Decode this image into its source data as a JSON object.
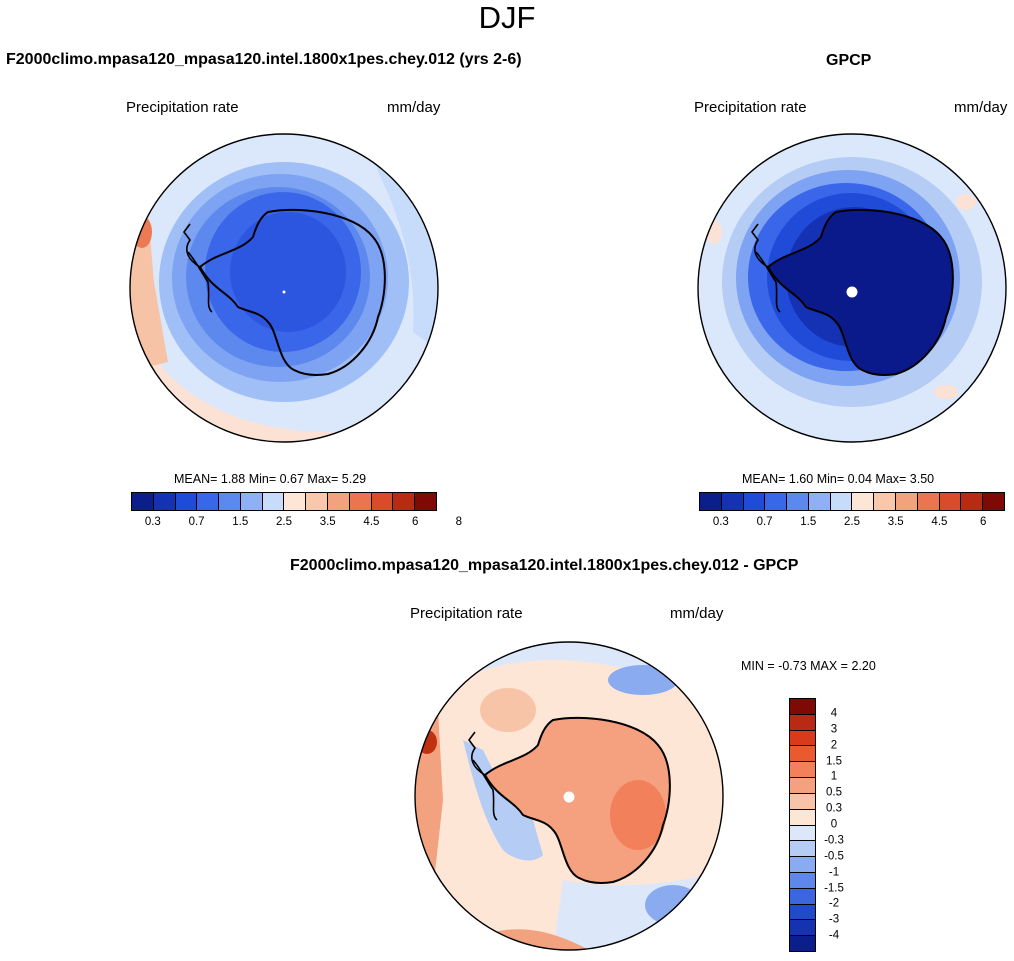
{
  "figure": {
    "season": "DJF",
    "title_model": "F2000climo.mpasa120_mpasa120.intel.1800x1pes.chey.012 (yrs 2-6)",
    "title_obs": "GPCP",
    "title_diff": "F2000climo.mpasa120_mpasa120.intel.1800x1pes.chey.012 - GPCP"
  },
  "panels": [
    {
      "variable": "Precipitation rate",
      "units": "mm/day",
      "stats": "MEAN=   1.88  Min=   0.67  Max=   5.29",
      "projection": "south polar stereographic",
      "dominant_color": "#3366ee"
    },
    {
      "variable": "Precipitation rate",
      "units": "mm/day",
      "stats": "MEAN=   1.60  Min=   0.04  Max=   3.50",
      "projection": "south polar stereographic",
      "dominant_color": "#0a1f9a"
    },
    {
      "variable": "Precipitation rate",
      "units": "mm/day",
      "stats": "MIN =  -0.73 MAX =   2.20",
      "projection": "south polar stereographic",
      "dominant_color": "#f0a080"
    }
  ],
  "colorbar_main": {
    "orientation": "horizontal",
    "colors": [
      "#0b1e8c",
      "#1532b5",
      "#1f4bd8",
      "#3a66ea",
      "#5d88f0",
      "#8fb0f5",
      "#c7dbfa",
      "#fde6d6",
      "#f8c8ac",
      "#f2a27e",
      "#ea7550",
      "#da4b2a",
      "#b82a14",
      "#7f0a05"
    ],
    "tick_labels": [
      "0.3",
      "0.7",
      "1.5",
      "2.5",
      "3.5",
      "4.5",
      "6",
      "8"
    ]
  },
  "colorbar_diff": {
    "orientation": "vertical",
    "colors": [
      "#7f0a05",
      "#b82a14",
      "#da3a1c",
      "#ea5a30",
      "#f2805a",
      "#f5a07e",
      "#f8c4a8",
      "#fde6d6",
      "#dce8fa",
      "#b5cdf5",
      "#8aabf0",
      "#5d88ea",
      "#3a66de",
      "#1f4bc8",
      "#1532b0",
      "#0b1e8c"
    ],
    "tick_labels": [
      "4",
      "3",
      "2",
      "1.5",
      "1",
      "0.5",
      "0.3",
      "0",
      "-0.3",
      "-0.5",
      "-1",
      "-1.5",
      "-2",
      "-3",
      "-4"
    ]
  }
}
